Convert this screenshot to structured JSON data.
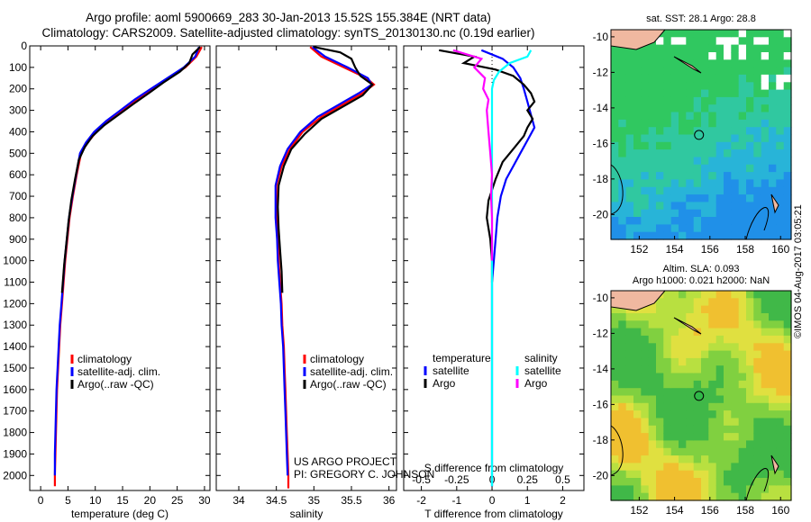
{
  "header": {
    "line1": "Argo profile: aoml 5900669_283 30-Jan-2013 15.52S 155.384E (NRT data)",
    "line2": "Climatology: CARS2009. Satellite-adjusted climatology: synTS_20130130.nc (0.19d earlier)"
  },
  "credit": "©IMOS 04-Aug-2017 03:05:21",
  "project": {
    "line1": "US ARGO PROJECT",
    "line2": "PI: GREGORY C. JOHNSON"
  },
  "chart_data": [
    {
      "type": "line",
      "name": "temperature-profile",
      "xlabel": "temperature (deg C)",
      "ylabel": "depth",
      "xlim": [
        -2,
        31
      ],
      "ylim": [
        2070,
        0
      ],
      "xticks": [
        0,
        5,
        10,
        15,
        20,
        25,
        30
      ],
      "yticks": [
        0,
        100,
        200,
        300,
        400,
        500,
        600,
        700,
        800,
        900,
        1000,
        1100,
        1200,
        1300,
        1400,
        1500,
        1600,
        1700,
        1800,
        1900,
        2000
      ],
      "legend": [
        "climatology",
        "satellite-adj. clim.",
        "Argo(..raw -QC)"
      ],
      "series": [
        {
          "name": "climatology",
          "color": "#ff0000",
          "points": [
            [
              29.5,
              5
            ],
            [
              28.5,
              50
            ],
            [
              26.5,
              100
            ],
            [
              23.5,
              150
            ],
            [
              20.5,
              200
            ],
            [
              17.5,
              250
            ],
            [
              15,
              300
            ],
            [
              12.5,
              350
            ],
            [
              10.2,
              400
            ],
            [
              8.6,
              450
            ],
            [
              7.4,
              500
            ],
            [
              6.6,
              600
            ],
            [
              5.9,
              700
            ],
            [
              5.3,
              800
            ],
            [
              4.9,
              900
            ],
            [
              4.5,
              1000
            ],
            [
              4.2,
              1100
            ],
            [
              3.9,
              1200
            ],
            [
              3.6,
              1300
            ],
            [
              3.4,
              1400
            ],
            [
              3.2,
              1500
            ],
            [
              3.0,
              1600
            ],
            [
              2.9,
              1700
            ],
            [
              2.8,
              1800
            ],
            [
              2.7,
              1900
            ],
            [
              2.6,
              2000
            ],
            [
              2.6,
              2050
            ]
          ]
        },
        {
          "name": "satellite-adj. clim.",
          "color": "#0000ff",
          "points": [
            [
              29,
              5
            ],
            [
              28.3,
              50
            ],
            [
              26.2,
              100
            ],
            [
              23.2,
              150
            ],
            [
              20.2,
              200
            ],
            [
              17.2,
              250
            ],
            [
              14.6,
              300
            ],
            [
              12,
              350
            ],
            [
              9.8,
              400
            ],
            [
              8.3,
              450
            ],
            [
              7.2,
              500
            ],
            [
              6.5,
              600
            ],
            [
              5.8,
              700
            ],
            [
              5.2,
              800
            ],
            [
              4.8,
              900
            ],
            [
              4.4,
              1000
            ],
            [
              4.1,
              1100
            ],
            [
              3.8,
              1200
            ],
            [
              3.5,
              1300
            ],
            [
              3.3,
              1400
            ],
            [
              3.1,
              1500
            ],
            [
              2.9,
              1600
            ],
            [
              2.8,
              1700
            ],
            [
              2.7,
              1800
            ],
            [
              2.6,
              1900
            ],
            [
              2.6,
              2000
            ]
          ]
        },
        {
          "name": "Argo(..raw -QC)",
          "color": "#000000",
          "points": [
            [
              29.2,
              5
            ],
            [
              27.8,
              40
            ],
            [
              27.2,
              80
            ],
            [
              25.5,
              120
            ],
            [
              22.5,
              170
            ],
            [
              19.8,
              220
            ],
            [
              17,
              270
            ],
            [
              14.3,
              320
            ],
            [
              11.6,
              370
            ],
            [
              9.5,
              420
            ],
            [
              8.1,
              470
            ],
            [
              7,
              530
            ],
            [
              6.3,
              620
            ],
            [
              5.6,
              720
            ],
            [
              5.1,
              820
            ],
            [
              4.7,
              920
            ],
            [
              4.3,
              1020
            ],
            [
              3.9,
              1150
            ]
          ]
        }
      ]
    },
    {
      "type": "line",
      "name": "salinity-profile",
      "xlabel": "salinity",
      "xlim": [
        33.7,
        36.1
      ],
      "ylim": [
        2070,
        0
      ],
      "xticks": [
        34,
        34.5,
        35,
        35.5,
        36
      ],
      "legend": [
        "climatology",
        "satellite-adj. clim.",
        "Argo(..raw -QC)"
      ],
      "series": [
        {
          "name": "climatology",
          "color": "#ff0000",
          "points": [
            [
              34.95,
              5
            ],
            [
              35.1,
              50
            ],
            [
              35.4,
              100
            ],
            [
              35.7,
              150
            ],
            [
              35.8,
              180
            ],
            [
              35.65,
              220
            ],
            [
              35.4,
              270
            ],
            [
              35.1,
              330
            ],
            [
              34.85,
              400
            ],
            [
              34.68,
              480
            ],
            [
              34.57,
              560
            ],
            [
              34.5,
              650
            ],
            [
              34.5,
              700
            ],
            [
              34.5,
              800
            ],
            [
              34.52,
              900
            ],
            [
              34.53,
              1000
            ],
            [
              34.55,
              1100
            ],
            [
              34.57,
              1200
            ],
            [
              34.58,
              1300
            ],
            [
              34.6,
              1400
            ],
            [
              34.61,
              1500
            ],
            [
              34.62,
              1600
            ],
            [
              34.63,
              1700
            ],
            [
              34.64,
              1800
            ],
            [
              34.65,
              1900
            ],
            [
              34.66,
              2000
            ],
            [
              34.66,
              2060
            ]
          ]
        },
        {
          "name": "satellite-adj. clim.",
          "color": "#0000ff",
          "points": [
            [
              34.98,
              5
            ],
            [
              35.15,
              50
            ],
            [
              35.45,
              100
            ],
            [
              35.72,
              150
            ],
            [
              35.77,
              180
            ],
            [
              35.6,
              220
            ],
            [
              35.35,
              270
            ],
            [
              35.05,
              330
            ],
            [
              34.82,
              400
            ],
            [
              34.65,
              480
            ],
            [
              34.55,
              560
            ],
            [
              34.49,
              650
            ],
            [
              34.49,
              700
            ],
            [
              34.49,
              800
            ],
            [
              34.51,
              900
            ],
            [
              34.52,
              1000
            ],
            [
              34.54,
              1100
            ],
            [
              34.56,
              1200
            ],
            [
              34.57,
              1300
            ],
            [
              34.59,
              1400
            ],
            [
              34.6,
              1500
            ],
            [
              34.61,
              1600
            ],
            [
              34.62,
              1700
            ],
            [
              34.63,
              1800
            ],
            [
              34.64,
              1900
            ],
            [
              34.65,
              2000
            ]
          ]
        },
        {
          "name": "Argo(..raw -QC)",
          "color": "#000000",
          "points": [
            [
              35,
              5
            ],
            [
              35.35,
              30
            ],
            [
              35.5,
              60
            ],
            [
              35.55,
              100
            ],
            [
              35.62,
              140
            ],
            [
              35.78,
              180
            ],
            [
              35.65,
              230
            ],
            [
              35.4,
              280
            ],
            [
              35.1,
              340
            ],
            [
              34.88,
              410
            ],
            [
              34.7,
              480
            ],
            [
              34.6,
              560
            ],
            [
              34.53,
              650
            ],
            [
              34.52,
              750
            ],
            [
              34.53,
              850
            ],
            [
              34.55,
              950
            ],
            [
              34.57,
              1050
            ],
            [
              34.58,
              1150
            ]
          ]
        }
      ]
    },
    {
      "type": "line",
      "name": "difference-profile",
      "xlabel": "T difference from climatology",
      "xlabel2": "S difference from climatology",
      "xlim": [
        -2.5,
        2.6
      ],
      "ylim": [
        2070,
        0
      ],
      "xticks": [
        -2,
        -1,
        0,
        1,
        2
      ],
      "xticks_top": [
        {
          "label": "-0.5",
          "v": -2
        },
        {
          "label": "-0.25",
          "v": -1
        },
        {
          "label": "0",
          "v": 0
        },
        {
          "label": "0.25",
          "v": 1
        },
        {
          "label": "0.5",
          "v": 2
        }
      ],
      "legend_temperature": {
        "title": "temperature",
        "items": [
          "satellite",
          "Argo"
        ]
      },
      "legend_salinity": {
        "title": "salinity",
        "items": [
          "satellite",
          "Argo"
        ]
      },
      "series": [
        {
          "name": "temperature satellite",
          "color": "#0000ff",
          "points": [
            [
              -0.3,
              20
            ],
            [
              0.3,
              60
            ],
            [
              0.6,
              100
            ],
            [
              0.8,
              150
            ],
            [
              0.9,
              200
            ],
            [
              1.0,
              260
            ],
            [
              1.1,
              320
            ],
            [
              1.2,
              380
            ],
            [
              1.0,
              440
            ],
            [
              0.8,
              500
            ],
            [
              0.6,
              560
            ],
            [
              0.4,
              620
            ],
            [
              0.25,
              700
            ],
            [
              0.15,
              800
            ],
            [
              0.1,
              900
            ],
            [
              0.05,
              1000
            ],
            [
              0,
              1100
            ],
            [
              0,
              2050
            ]
          ]
        },
        {
          "name": "temperature Argo",
          "color": "#000000",
          "points": [
            [
              -1.5,
              20
            ],
            [
              -0.5,
              50
            ],
            [
              -0.8,
              80
            ],
            [
              0.1,
              110
            ],
            [
              0.6,
              140
            ],
            [
              0.9,
              180
            ],
            [
              1.1,
              220
            ],
            [
              1.2,
              260
            ],
            [
              1.0,
              300
            ],
            [
              1.15,
              340
            ],
            [
              1.0,
              380
            ],
            [
              0.9,
              420
            ],
            [
              0.6,
              480
            ],
            [
              0.3,
              540
            ],
            [
              0.1,
              620
            ],
            [
              -0.1,
              720
            ],
            [
              -0.15,
              800
            ],
            [
              -0.05,
              900
            ],
            [
              0,
              1000
            ],
            [
              0,
              1100
            ]
          ]
        },
        {
          "name": "salinity satellite",
          "color": "#00ffff",
          "points": [
            [
              1.1,
              20
            ],
            [
              1.0,
              50
            ],
            [
              0.5,
              80
            ],
            [
              0.2,
              120
            ],
            [
              0.05,
              160
            ],
            [
              0,
              200
            ],
            [
              0,
              400
            ],
            [
              0,
              2050
            ]
          ]
        },
        {
          "name": "salinity Argo",
          "color": "#ff00ff",
          "points": [
            [
              -1.1,
              20
            ],
            [
              -0.3,
              60
            ],
            [
              -0.5,
              100
            ],
            [
              -0.2,
              150
            ],
            [
              -0.25,
              200
            ],
            [
              -0.1,
              250
            ],
            [
              -0.15,
              300
            ],
            [
              -0.1,
              400
            ],
            [
              -0.05,
              500
            ],
            [
              0,
              600
            ],
            [
              -0.03,
              700
            ],
            [
              0,
              800
            ],
            [
              0,
              900
            ],
            [
              0,
              1000
            ]
          ]
        }
      ]
    },
    {
      "type": "heatmap",
      "name": "sst-map",
      "title": "sat. SST: 28.1  Argo: 28.8",
      "xticks": [
        152,
        154,
        156,
        158,
        160
      ],
      "yticks": [
        -10,
        -12,
        -14,
        -16,
        -18,
        -20
      ],
      "xlim": [
        150.4,
        160.6
      ],
      "ylim": [
        -21.4,
        -9.6
      ],
      "argo_position": [
        155.384,
        -15.52
      ]
    },
    {
      "type": "heatmap",
      "name": "sla-map",
      "title": "Altim. SLA: 0.093",
      "subtitle": "Argo h1000: 0.021 h2000: NaN",
      "xticks": [
        152,
        154,
        156,
        158,
        160
      ],
      "yticks": [
        -10,
        -12,
        -14,
        -16,
        -18,
        -20
      ],
      "xlim": [
        150.4,
        160.6
      ],
      "ylim": [
        -21.4,
        -9.6
      ],
      "argo_position": [
        155.384,
        -15.52
      ]
    }
  ]
}
